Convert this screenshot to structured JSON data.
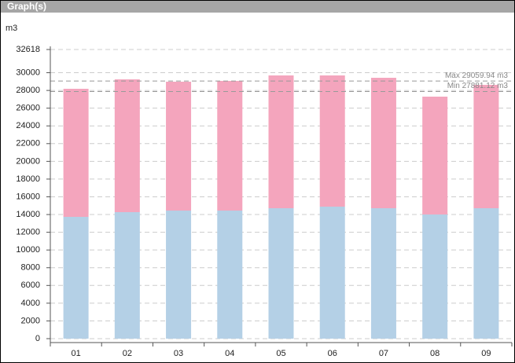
{
  "header": {
    "title": "Graph(s)"
  },
  "chart_data": {
    "type": "stacked-bar",
    "y_label": "m3",
    "categories": [
      "01",
      "02",
      "03",
      "04",
      "05",
      "06",
      "07",
      "08",
      "09"
    ],
    "series": [
      {
        "color": "#b4d0e6",
        "values": [
          13739,
          14270,
          14448,
          14448,
          14714,
          14891,
          14714,
          14004,
          14714
        ]
      },
      {
        "color": "#f4a5bd",
        "values": [
          14447,
          14980,
          14536,
          14625,
          14979,
          14802,
          14713,
          13296,
          13916
        ]
      }
    ],
    "ylim": [
      0,
      32618
    ],
    "yticks": [
      0,
      2000,
      4000,
      6000,
      8000,
      10000,
      12000,
      14000,
      16000,
      18000,
      20000,
      22000,
      24000,
      26000,
      28000,
      30000,
      32618
    ],
    "grid": true,
    "reference_lines": [
      {
        "value": 29059.94,
        "label": "Max 29059.94 m3"
      },
      {
        "value": 27881.12,
        "label": "Min 27881.12 m3"
      }
    ]
  }
}
